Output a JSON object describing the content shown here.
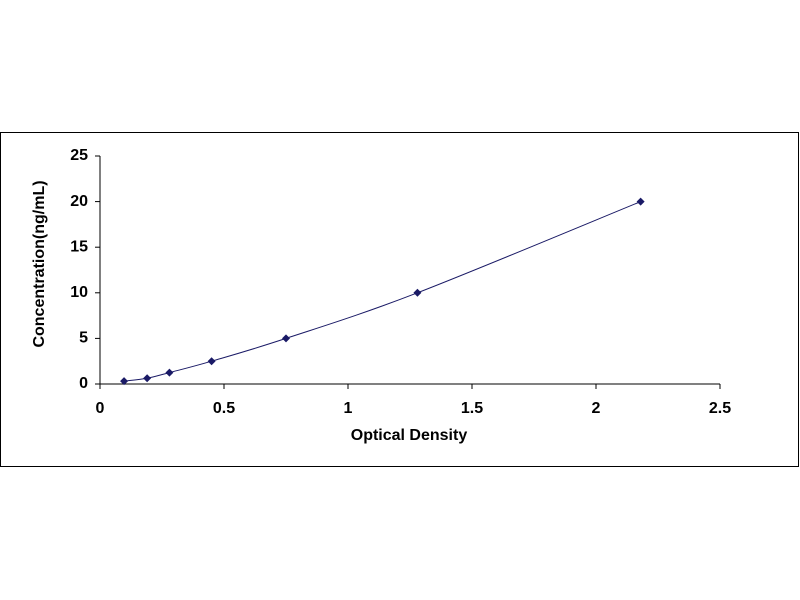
{
  "chart_data": {
    "type": "scatter",
    "x_label": "Optical Density",
    "y_label": "Concentration(ng/mL)",
    "series": [
      {
        "color": "#1a1a66",
        "x": [
          0.097,
          0.19,
          0.28,
          0.45,
          0.75,
          1.28,
          2.18
        ],
        "values": [
          0.31,
          0.63,
          1.25,
          2.5,
          5,
          10,
          20
        ]
      }
    ],
    "trendline": true,
    "xlim": [
      0,
      2.5
    ],
    "xticks": [
      0,
      0.5,
      1,
      1.5,
      2,
      2.5
    ],
    "ylim": [
      0,
      25
    ],
    "yticks": [
      0,
      5,
      10,
      15,
      20,
      25
    ],
    "grid": false
  }
}
